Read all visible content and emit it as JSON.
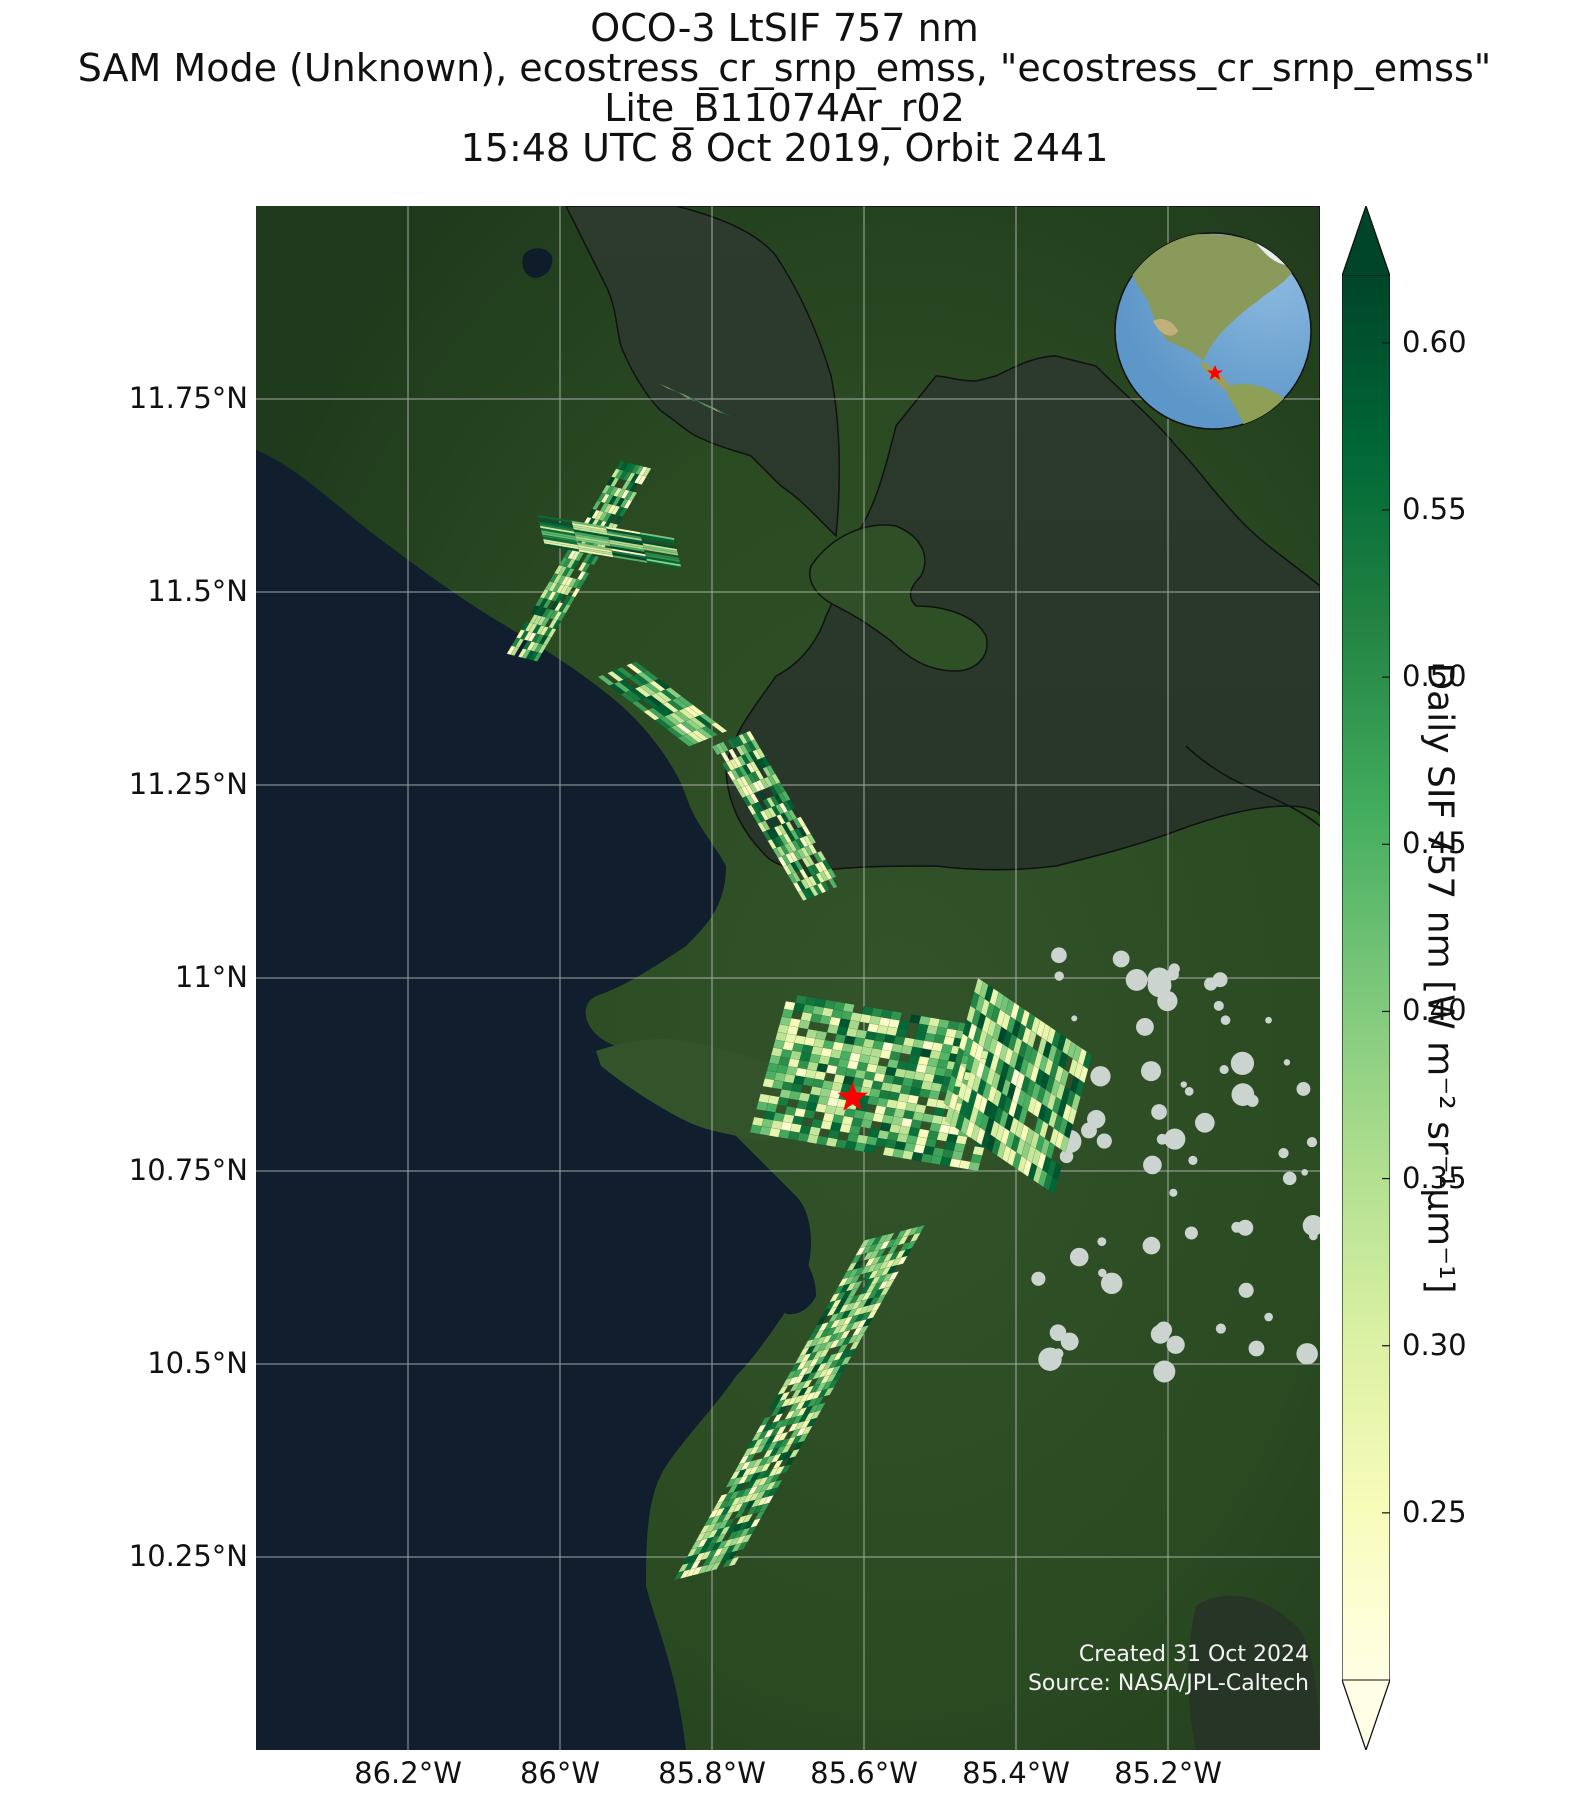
{
  "title": {
    "line1": "OCO-3 LtSIF 757 nm",
    "line2": "SAM Mode (Unknown), ecostress_cr_srnp_emss, \"ecostress_cr_srnp_emss\"",
    "line3": "Lite_B11074Ar_r02",
    "line4": "15:48 UTC 8 Oct 2019, Orbit 2441"
  },
  "map": {
    "extent": {
      "lon_min": -86.4,
      "lon_max": -85.0,
      "lat_min": 10.0,
      "lat_max": 12.0
    },
    "lat_ticks": [
      {
        "value": 11.75,
        "label": "11.75°N"
      },
      {
        "value": 11.5,
        "label": "11.5°N"
      },
      {
        "value": 11.25,
        "label": "11.25°N"
      },
      {
        "value": 11.0,
        "label": "11°N"
      },
      {
        "value": 10.75,
        "label": "10.75°N"
      },
      {
        "value": 10.5,
        "label": "10.5°N"
      },
      {
        "value": 10.25,
        "label": "10.25°N"
      }
    ],
    "lon_ticks": [
      {
        "value": -86.2,
        "label": "86.2°W"
      },
      {
        "value": -86.0,
        "label": "86°W"
      },
      {
        "value": -85.8,
        "label": "85.8°W"
      },
      {
        "value": -85.6,
        "label": "85.6°W"
      },
      {
        "value": -85.4,
        "label": "85.4°W"
      },
      {
        "value": -85.2,
        "label": "85.2°W"
      }
    ],
    "target_marker": {
      "lon": -85.615,
      "lat": 10.845,
      "color": "#ff0000",
      "icon": "star-icon"
    },
    "inset_globe": {
      "icon": "globe-icon",
      "ocean_color": "#7fb1d9",
      "marker_color": "#ff0000"
    },
    "colors": {
      "ocean": "#101e2d",
      "land": "#2a4a22",
      "lake": "#2c3a2c"
    },
    "credit_line1": "Created 31 Oct 2024",
    "credit_line2": "Source: NASA/JPL-Caltech"
  },
  "colorbar": {
    "label": "Daily SIF 757 nm [W m⁻² sr⁻¹μm⁻¹]",
    "vmin": 0.2,
    "vmax": 0.62,
    "ticks": [
      {
        "value": 0.25,
        "label": "0.25"
      },
      {
        "value": 0.3,
        "label": "0.30"
      },
      {
        "value": 0.35,
        "label": "0.35"
      },
      {
        "value": 0.4,
        "label": "0.40"
      },
      {
        "value": 0.45,
        "label": "0.45"
      },
      {
        "value": 0.5,
        "label": "0.50"
      },
      {
        "value": 0.55,
        "label": "0.55"
      },
      {
        "value": 0.6,
        "label": "0.60"
      }
    ],
    "colormap": "YlGn",
    "extend": "both"
  },
  "chart_data": {
    "type": "heatmap",
    "xlabel": "",
    "ylabel": "",
    "colorbar_label": "Daily SIF 757 nm [W m⁻² sr⁻¹μm⁻¹]",
    "value_range": [
      0.2,
      0.62
    ],
    "swaths": [
      {
        "start": [
          -85.8,
          11.74
        ],
        "end": [
          -85.76,
          11.72
        ],
        "across": [
          -0.07,
          0.03
        ],
        "rows": 3,
        "cols": 6
      },
      {
        "start": [
          -85.88,
          11.66
        ],
        "end": [
          -86.03,
          11.41
        ],
        "across": [
          -0.04,
          0.01
        ],
        "rows": 24,
        "cols": 8
      },
      {
        "start": [
          -85.85,
          11.57
        ],
        "end": [
          -86.03,
          11.6
        ],
        "across": [
          0.01,
          -0.04
        ],
        "rows": 4,
        "cols": 14
      },
      {
        "start": [
          -85.95,
          11.39
        ],
        "end": [
          -85.83,
          11.3
        ],
        "across": [
          0.05,
          0.02
        ],
        "rows": 8,
        "cols": 8
      },
      {
        "start": [
          -85.8,
          11.3
        ],
        "end": [
          -85.68,
          11.1
        ],
        "across": [
          0.05,
          0.02
        ],
        "rows": 18,
        "cols": 10
      },
      {
        "start": [
          -85.7,
          10.98
        ],
        "end": [
          -85.4,
          10.93
        ],
        "across": [
          -0.05,
          -0.18
        ],
        "rows": 24,
        "cols": 18
      },
      {
        "start": [
          -85.45,
          11.0
        ],
        "end": [
          -85.3,
          10.9
        ],
        "across": [
          -0.05,
          -0.18
        ],
        "rows": 22,
        "cols": 10
      },
      {
        "start": [
          -85.6,
          10.66
        ],
        "end": [
          -85.85,
          10.22
        ],
        "across": [
          0.08,
          0.02
        ],
        "rows": 44,
        "cols": 10
      }
    ]
  }
}
